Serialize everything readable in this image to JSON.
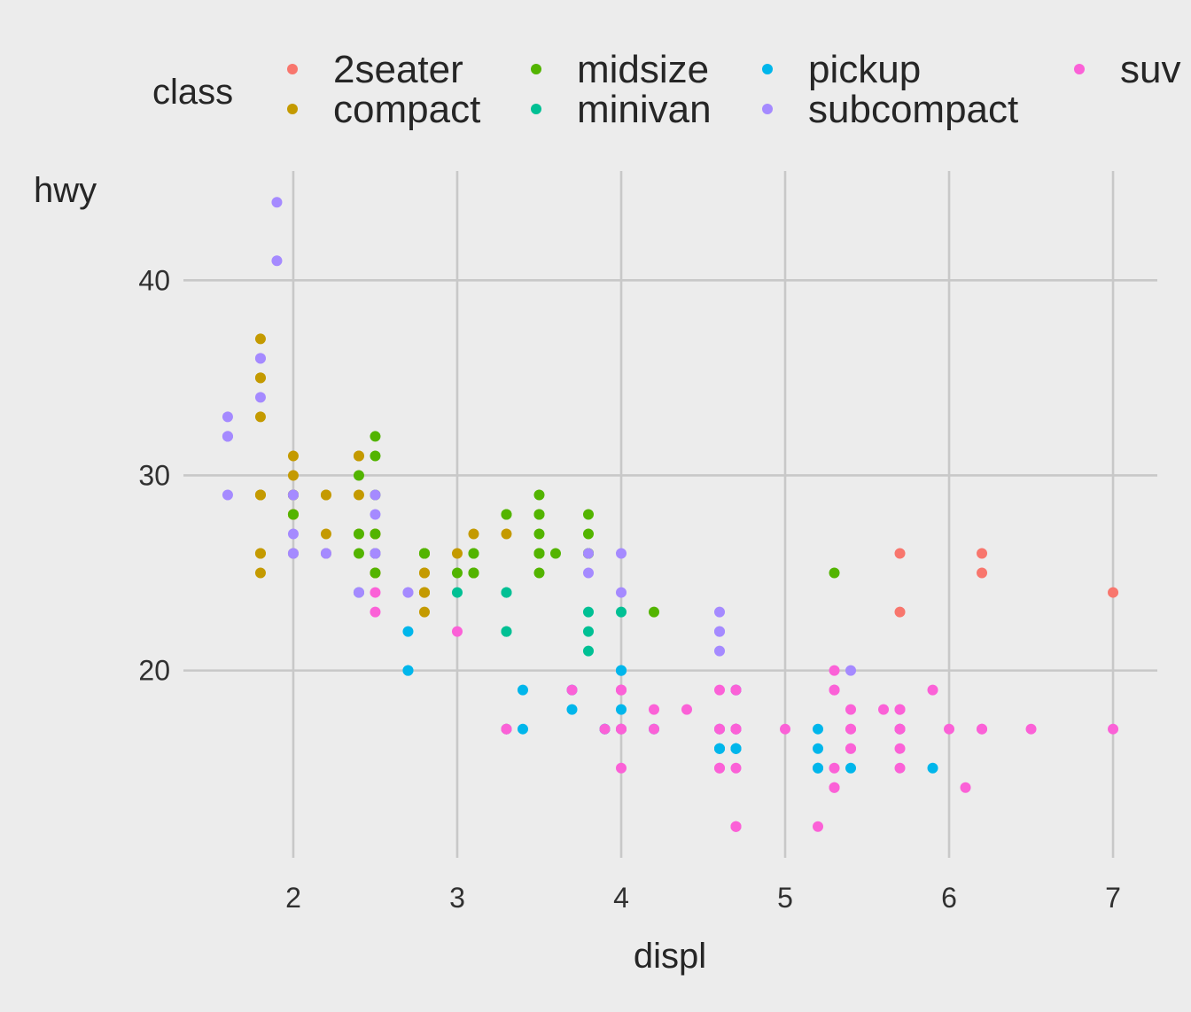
{
  "chart_data": {
    "type": "scatter",
    "title": "",
    "xlabel": "displ",
    "ylabel": "hwy",
    "xlim": [
      1.33,
      7.27
    ],
    "ylim": [
      10.4,
      45.6
    ],
    "x_ticks": [
      2,
      3,
      4,
      5,
      6,
      7
    ],
    "y_ticks": [
      20,
      30,
      40
    ],
    "grid": true,
    "grid_x_lines": [
      2,
      3,
      4,
      5,
      6,
      7
    ],
    "grid_y_lines": [
      20,
      30,
      40
    ],
    "background_color": "#ececec",
    "grid_color": "#c8c8c8",
    "legend": {
      "title": "class",
      "position": "top",
      "entries": [
        {
          "name": "2seater",
          "color": "#F8766D"
        },
        {
          "name": "compact",
          "color": "#C49A00"
        },
        {
          "name": "midsize",
          "color": "#53B400"
        },
        {
          "name": "minivan",
          "color": "#00C094"
        },
        {
          "name": "pickup",
          "color": "#00B6EB"
        },
        {
          "name": "subcompact",
          "color": "#A58AFF"
        },
        {
          "name": "suv",
          "color": "#FB61D7"
        }
      ]
    },
    "series": [
      {
        "name": "2seater",
        "color": "#F8766D",
        "points": [
          [
            5.7,
            26
          ],
          [
            5.7,
            23
          ],
          [
            6.2,
            26
          ],
          [
            6.2,
            25
          ],
          [
            7.0,
            24
          ]
        ]
      },
      {
        "name": "compact",
        "color": "#C49A00",
        "points": [
          [
            1.8,
            29
          ],
          [
            1.8,
            29
          ],
          [
            2.0,
            31
          ],
          [
            2.0,
            30
          ],
          [
            2.8,
            26
          ],
          [
            2.8,
            26
          ],
          [
            3.1,
            27
          ],
          [
            1.8,
            26
          ],
          [
            1.8,
            25
          ],
          [
            2.0,
            28
          ],
          [
            2.0,
            29
          ],
          [
            2.8,
            25
          ],
          [
            2.8,
            25
          ],
          [
            2.8,
            24
          ],
          [
            2.8,
            24
          ],
          [
            3.1,
            25
          ],
          [
            2.2,
            27
          ],
          [
            2.2,
            29
          ],
          [
            2.4,
            31
          ],
          [
            2.4,
            31
          ],
          [
            3.0,
            26
          ],
          [
            2.0,
            28
          ],
          [
            2.0,
            28
          ],
          [
            2.4,
            27
          ],
          [
            2.4,
            29
          ],
          [
            2.2,
            26
          ],
          [
            2.2,
            29
          ],
          [
            2.5,
            27
          ],
          [
            2.5,
            25
          ],
          [
            2.5,
            25
          ],
          [
            2.5,
            27
          ],
          [
            1.8,
            33
          ],
          [
            1.8,
            35
          ],
          [
            1.8,
            37
          ],
          [
            1.8,
            35
          ],
          [
            1.8,
            29
          ],
          [
            1.8,
            26
          ],
          [
            2.0,
            29
          ],
          [
            2.0,
            29
          ],
          [
            2.0,
            28
          ],
          [
            2.0,
            29
          ],
          [
            2.8,
            23
          ],
          [
            2.0,
            26
          ],
          [
            2.0,
            29
          ],
          [
            3.3,
            27
          ],
          [
            2.8,
            24
          ],
          [
            2.8,
            24
          ]
        ]
      },
      {
        "name": "midsize",
        "color": "#53B400",
        "points": [
          [
            2.8,
            26
          ],
          [
            3.1,
            26
          ],
          [
            4.2,
            23
          ],
          [
            5.3,
            25
          ],
          [
            2.4,
            26
          ],
          [
            2.4,
            30
          ],
          [
            3.1,
            25
          ],
          [
            3.5,
            29
          ],
          [
            3.6,
            26
          ],
          [
            2.4,
            27
          ],
          [
            3.0,
            25
          ],
          [
            3.3,
            28
          ],
          [
            3.3,
            28
          ],
          [
            3.5,
            26
          ],
          [
            3.5,
            25
          ],
          [
            3.5,
            28
          ],
          [
            3.5,
            27
          ],
          [
            3.8,
            26
          ],
          [
            3.8,
            27
          ],
          [
            3.8,
            28
          ],
          [
            3.8,
            26
          ],
          [
            2.5,
            32
          ],
          [
            2.5,
            31
          ],
          [
            2.5,
            29
          ],
          [
            2.5,
            27
          ],
          [
            2.5,
            26
          ],
          [
            2.5,
            26
          ],
          [
            2.5,
            26
          ],
          [
            2.5,
            25
          ],
          [
            2.0,
            29
          ],
          [
            2.0,
            28
          ],
          [
            2.8,
            26
          ],
          [
            2.8,
            26
          ],
          [
            3.1,
            26
          ],
          [
            3.1,
            25
          ],
          [
            3.5,
            26
          ],
          [
            3.5,
            26
          ],
          [
            3.5,
            28
          ],
          [
            3.5,
            26
          ],
          [
            3.8,
            26
          ]
        ]
      },
      {
        "name": "minivan",
        "color": "#00C094",
        "points": [
          [
            2.4,
            24
          ],
          [
            3.0,
            24
          ],
          [
            3.3,
            22
          ],
          [
            3.3,
            22
          ],
          [
            3.3,
            24
          ],
          [
            3.3,
            24
          ],
          [
            3.3,
            17
          ],
          [
            3.8,
            22
          ],
          [
            3.8,
            21
          ],
          [
            3.8,
            23
          ],
          [
            4.0,
            23
          ]
        ]
      },
      {
        "name": "pickup",
        "color": "#00B6EB",
        "points": [
          [
            2.7,
            20
          ],
          [
            2.7,
            20
          ],
          [
            2.7,
            22
          ],
          [
            3.4,
            17
          ],
          [
            3.4,
            19
          ],
          [
            4.0,
            18
          ],
          [
            4.0,
            20
          ],
          [
            3.7,
            19
          ],
          [
            3.7,
            18
          ],
          [
            3.9,
            17
          ],
          [
            3.9,
            17
          ],
          [
            4.7,
            19
          ],
          [
            4.7,
            16
          ],
          [
            4.7,
            16
          ],
          [
            4.7,
            19
          ],
          [
            5.2,
            15
          ],
          [
            5.2,
            17
          ],
          [
            4.7,
            17
          ],
          [
            4.7,
            17
          ],
          [
            4.7,
            16
          ],
          [
            4.7,
            16
          ],
          [
            5.7,
            17
          ],
          [
            5.9,
            15
          ],
          [
            4.6,
            16
          ],
          [
            4.6,
            17
          ],
          [
            5.4,
            15
          ],
          [
            5.2,
            16
          ],
          [
            5.2,
            15
          ],
          [
            4.0,
            20
          ],
          [
            4.0,
            20
          ],
          [
            4.0,
            17
          ],
          [
            4.2,
            17
          ],
          [
            4.6,
            16
          ],
          [
            4.6,
            16
          ]
        ]
      },
      {
        "name": "subcompact",
        "color": "#A58AFF",
        "points": [
          [
            3.8,
            26
          ],
          [
            3.8,
            25
          ],
          [
            4.0,
            26
          ],
          [
            4.0,
            24
          ],
          [
            4.6,
            21
          ],
          [
            4.6,
            22
          ],
          [
            4.6,
            23
          ],
          [
            4.6,
            22
          ],
          [
            5.4,
            20
          ],
          [
            1.6,
            33
          ],
          [
            1.6,
            32
          ],
          [
            1.6,
            32
          ],
          [
            1.6,
            29
          ],
          [
            1.6,
            32
          ],
          [
            1.8,
            34
          ],
          [
            1.8,
            36
          ],
          [
            1.8,
            36
          ],
          [
            2.0,
            29
          ],
          [
            2.4,
            24
          ],
          [
            2.4,
            24
          ],
          [
            2.5,
            26
          ],
          [
            2.5,
            28
          ],
          [
            2.5,
            29
          ],
          [
            2.5,
            26
          ],
          [
            2.5,
            26
          ],
          [
            2.2,
            26
          ],
          [
            2.2,
            26
          ],
          [
            2.0,
            26
          ],
          [
            2.0,
            27
          ],
          [
            2.7,
            24
          ],
          [
            2.7,
            24
          ],
          [
            1.9,
            44
          ],
          [
            2.0,
            29
          ],
          [
            2.0,
            26
          ],
          [
            1.9,
            41
          ]
        ]
      },
      {
        "name": "suv",
        "color": "#FB61D7",
        "points": [
          [
            5.7,
            15
          ],
          [
            5.7,
            18
          ],
          [
            6.2,
            17
          ],
          [
            6.2,
            17
          ],
          [
            7.0,
            17
          ],
          [
            5.3,
            20
          ],
          [
            5.3,
            15
          ],
          [
            5.7,
            17
          ],
          [
            6.5,
            17
          ],
          [
            5.3,
            19
          ],
          [
            5.7,
            17
          ],
          [
            6.0,
            17
          ],
          [
            4.7,
            12
          ],
          [
            4.7,
            17
          ],
          [
            5.2,
            12
          ],
          [
            5.7,
            17
          ],
          [
            5.9,
            19
          ],
          [
            4.6,
            15
          ],
          [
            5.4,
            17
          ],
          [
            5.4,
            16
          ],
          [
            4.0,
            19
          ],
          [
            4.0,
            17
          ],
          [
            4.6,
            17
          ],
          [
            5.0,
            17
          ],
          [
            4.2,
            18
          ],
          [
            4.6,
            19
          ],
          [
            4.7,
            12
          ],
          [
            4.7,
            17
          ],
          [
            5.7,
            16
          ],
          [
            4.2,
            17
          ],
          [
            4.4,
            18
          ],
          [
            4.7,
            19
          ],
          [
            4.7,
            19
          ],
          [
            4.6,
            17
          ],
          [
            5.4,
            17
          ],
          [
            4.0,
            19
          ],
          [
            4.7,
            15
          ],
          [
            4.7,
            17
          ],
          [
            5.3,
            19
          ],
          [
            6.1,
            14
          ],
          [
            4.7,
            12
          ],
          [
            4.7,
            17
          ],
          [
            5.3,
            14
          ],
          [
            5.4,
            16
          ],
          [
            5.6,
            18
          ],
          [
            4.0,
            19
          ],
          [
            4.0,
            17
          ],
          [
            4.0,
            15
          ],
          [
            4.0,
            17
          ],
          [
            3.7,
            19
          ],
          [
            4.6,
            15
          ],
          [
            5.4,
            18
          ],
          [
            3.3,
            17
          ],
          [
            3.3,
            17
          ],
          [
            2.5,
            24
          ],
          [
            2.5,
            23
          ],
          [
            3.0,
            22
          ],
          [
            3.9,
            17
          ],
          [
            4.7,
            17
          ],
          [
            5.3,
            14
          ],
          [
            5.7,
            18
          ]
        ]
      }
    ]
  }
}
